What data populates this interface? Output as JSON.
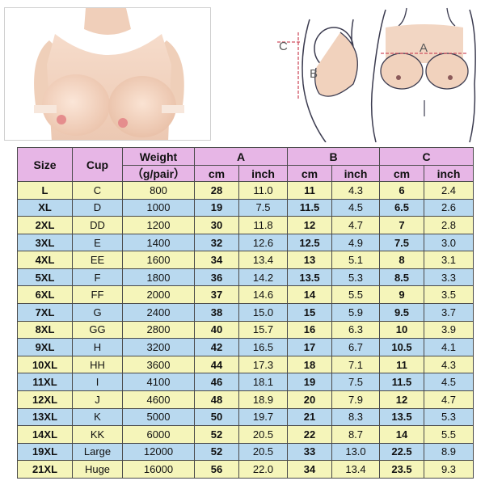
{
  "diagram_labels": {
    "a": "A",
    "b": "B",
    "c": "C"
  },
  "table": {
    "headers": {
      "size": "Size",
      "cup": "Cup",
      "weight": "Weight",
      "weight_unit": "（g/pair）",
      "a": "A",
      "b": "B",
      "c": "C",
      "cm": "cm",
      "inch": "inch"
    },
    "rows": [
      {
        "size": "L",
        "cup": "C",
        "weight": "800",
        "a_cm": "28",
        "a_in": "11.0",
        "b_cm": "11",
        "b_in": "4.3",
        "c_cm": "6",
        "c_in": "2.4"
      },
      {
        "size": "XL",
        "cup": "D",
        "weight": "1000",
        "a_cm": "19",
        "a_in": "7.5",
        "b_cm": "11.5",
        "b_in": "4.5",
        "c_cm": "6.5",
        "c_in": "2.6"
      },
      {
        "size": "2XL",
        "cup": "DD",
        "weight": "1200",
        "a_cm": "30",
        "a_in": "11.8",
        "b_cm": "12",
        "b_in": "4.7",
        "c_cm": "7",
        "c_in": "2.8"
      },
      {
        "size": "3XL",
        "cup": "E",
        "weight": "1400",
        "a_cm": "32",
        "a_in": "12.6",
        "b_cm": "12.5",
        "b_in": "4.9",
        "c_cm": "7.5",
        "c_in": "3.0"
      },
      {
        "size": "4XL",
        "cup": "EE",
        "weight": "1600",
        "a_cm": "34",
        "a_in": "13.4",
        "b_cm": "13",
        "b_in": "5.1",
        "c_cm": "8",
        "c_in": "3.1"
      },
      {
        "size": "5XL",
        "cup": "F",
        "weight": "1800",
        "a_cm": "36",
        "a_in": "14.2",
        "b_cm": "13.5",
        "b_in": "5.3",
        "c_cm": "8.5",
        "c_in": "3.3"
      },
      {
        "size": "6XL",
        "cup": "FF",
        "weight": "2000",
        "a_cm": "37",
        "a_in": "14.6",
        "b_cm": "14",
        "b_in": "5.5",
        "c_cm": "9",
        "c_in": "3.5"
      },
      {
        "size": "7XL",
        "cup": "G",
        "weight": "2400",
        "a_cm": "38",
        "a_in": "15.0",
        "b_cm": "15",
        "b_in": "5.9",
        "c_cm": "9.5",
        "c_in": "3.7"
      },
      {
        "size": "8XL",
        "cup": "GG",
        "weight": "2800",
        "a_cm": "40",
        "a_in": "15.7",
        "b_cm": "16",
        "b_in": "6.3",
        "c_cm": "10",
        "c_in": "3.9"
      },
      {
        "size": "9XL",
        "cup": "H",
        "weight": "3200",
        "a_cm": "42",
        "a_in": "16.5",
        "b_cm": "17",
        "b_in": "6.7",
        "c_cm": "10.5",
        "c_in": "4.1"
      },
      {
        "size": "10XL",
        "cup": "HH",
        "weight": "3600",
        "a_cm": "44",
        "a_in": "17.3",
        "b_cm": "18",
        "b_in": "7.1",
        "c_cm": "11",
        "c_in": "4.3"
      },
      {
        "size": "11XL",
        "cup": "I",
        "weight": "4100",
        "a_cm": "46",
        "a_in": "18.1",
        "b_cm": "19",
        "b_in": "7.5",
        "c_cm": "11.5",
        "c_in": "4.5"
      },
      {
        "size": "12XL",
        "cup": "J",
        "weight": "4600",
        "a_cm": "48",
        "a_in": "18.9",
        "b_cm": "20",
        "b_in": "7.9",
        "c_cm": "12",
        "c_in": "4.7"
      },
      {
        "size": "13XL",
        "cup": "K",
        "weight": "5000",
        "a_cm": "50",
        "a_in": "19.7",
        "b_cm": "21",
        "b_in": "8.3",
        "c_cm": "13.5",
        "c_in": "5.3"
      },
      {
        "size": "14XL",
        "cup": "KK",
        "weight": "6000",
        "a_cm": "52",
        "a_in": "20.5",
        "b_cm": "22",
        "b_in": "8.7",
        "c_cm": "14",
        "c_in": "5.5"
      },
      {
        "size": "19XL",
        "cup": "Large",
        "weight": "12000",
        "a_cm": "52",
        "a_in": "20.5",
        "b_cm": "33",
        "b_in": "13.0",
        "c_cm": "22.5",
        "c_in": "8.9"
      },
      {
        "size": "21XL",
        "cup": "Huge",
        "weight": "16000",
        "a_cm": "56",
        "a_in": "22.0",
        "b_cm": "34",
        "b_in": "13.4",
        "c_cm": "23.5",
        "c_in": "9.3"
      }
    ]
  },
  "colors": {
    "header_bg": "#e7b6e6",
    "row_yellow": "#f5f5ba",
    "row_blue": "#b9d9ef",
    "skin": "#f1d2bd",
    "diagram_line": "#3c3c50",
    "dimension_line": "#d05060"
  }
}
